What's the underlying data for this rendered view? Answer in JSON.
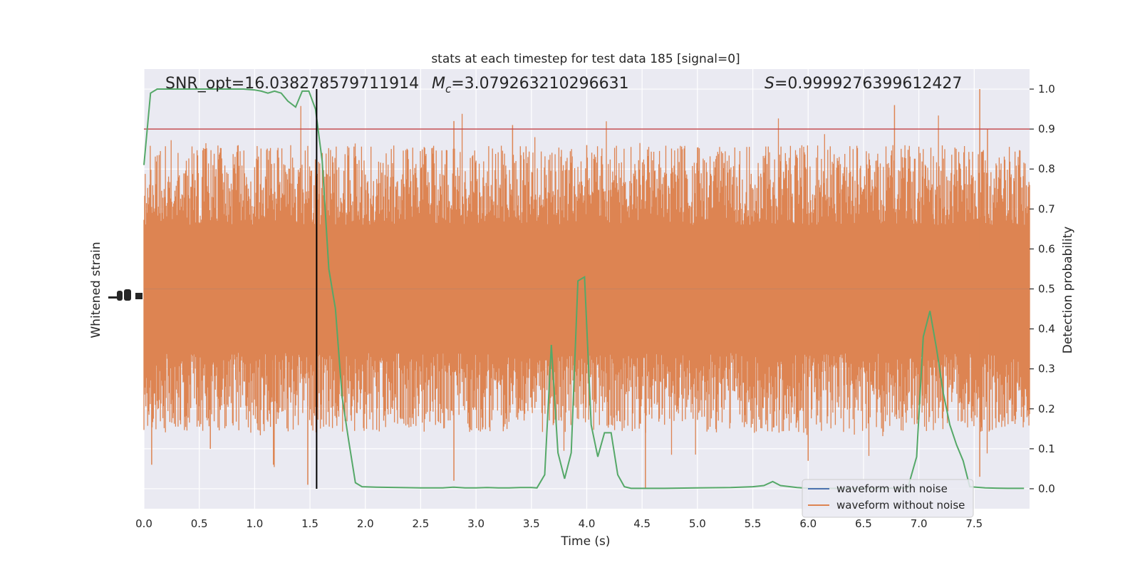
{
  "chart_data": {
    "type": "line",
    "title": "stats at each timestep for test data 185 [signal=0]",
    "xlabel": "Time (s)",
    "ylabel_left": "Whitened strain",
    "ylabel_right": "Detection probability",
    "xlim": [
      0.0,
      8.0
    ],
    "ylim_right": [
      -0.05,
      1.05
    ],
    "x_ticks": [
      0.0,
      0.5,
      1.0,
      1.5,
      2.0,
      2.5,
      3.0,
      3.5,
      4.0,
      4.5,
      5.0,
      5.5,
      6.0,
      6.5,
      7.0,
      7.5
    ],
    "x_tick_labels": [
      "0.0",
      "0.5",
      "1.0",
      "1.5",
      "2.0",
      "2.5",
      "3.0",
      "3.5",
      "4.0",
      "4.5",
      "5.0",
      "5.5",
      "6.0",
      "6.5",
      "7.0",
      "7.5"
    ],
    "y_right_ticks": [
      0.0,
      0.1,
      0.2,
      0.3,
      0.4,
      0.5,
      0.6,
      0.7,
      0.8,
      0.9,
      1.0
    ],
    "y_right_tick_labels": [
      "0.0",
      "0.1",
      "0.2",
      "0.3",
      "0.4",
      "0.5",
      "0.6",
      "0.7",
      "0.8",
      "0.9",
      "1.0"
    ],
    "grid": true,
    "legend_position": "lower-right",
    "annotations": {
      "snr": "SNR_opt=16.038278579711914",
      "mc_symbol": "M",
      "mc_subscript": "c",
      "mc_value": "=3.079263210296631",
      "s_symbol": "S",
      "s_value": "=0.9999276399612427"
    },
    "threshold": 0.9,
    "vline_x": 1.56,
    "series": [
      {
        "name": "waveform with noise",
        "color": "#4c72b0"
      },
      {
        "name": "waveform without noise",
        "color": "#dd8452"
      }
    ],
    "probability_series": {
      "color": "#55a868",
      "x": [
        0.0,
        0.06,
        0.12,
        0.2,
        0.3,
        0.4,
        0.5,
        0.6,
        0.7,
        0.8,
        0.9,
        1.0,
        1.06,
        1.12,
        1.18,
        1.24,
        1.3,
        1.37,
        1.43,
        1.49,
        1.55,
        1.61,
        1.67,
        1.73,
        1.79,
        1.85,
        1.91,
        1.97,
        2.1,
        2.3,
        2.5,
        2.7,
        2.8,
        2.9,
        3.0,
        3.1,
        3.2,
        3.3,
        3.4,
        3.5,
        3.55,
        3.62,
        3.68,
        3.74,
        3.8,
        3.86,
        3.92,
        3.98,
        4.04,
        4.1,
        4.16,
        4.22,
        4.28,
        4.34,
        4.4,
        4.5,
        4.7,
        5.0,
        5.3,
        5.5,
        5.6,
        5.68,
        5.75,
        5.9,
        6.0,
        6.3,
        6.6,
        6.9,
        6.98,
        7.04,
        7.1,
        7.16,
        7.22,
        7.28,
        7.34,
        7.4,
        7.46,
        7.6,
        7.8,
        7.95
      ],
      "y": [
        0.81,
        0.99,
        1.0,
        1.0,
        1.0,
        1.0,
        1.0,
        1.0,
        1.0,
        1.0,
        1.0,
        0.998,
        0.995,
        0.99,
        0.995,
        0.99,
        0.97,
        0.955,
        0.995,
        0.995,
        0.95,
        0.82,
        0.55,
        0.45,
        0.23,
        0.12,
        0.015,
        0.005,
        0.004,
        0.003,
        0.002,
        0.002,
        0.004,
        0.002,
        0.002,
        0.003,
        0.002,
        0.002,
        0.003,
        0.003,
        0.002,
        0.035,
        0.36,
        0.09,
        0.025,
        0.09,
        0.52,
        0.53,
        0.16,
        0.08,
        0.14,
        0.14,
        0.035,
        0.005,
        0.001,
        0.001,
        0.001,
        0.002,
        0.003,
        0.005,
        0.008,
        0.018,
        0.008,
        0.003,
        0.001,
        0.001,
        0.001,
        0.002,
        0.08,
        0.38,
        0.445,
        0.35,
        0.24,
        0.16,
        0.11,
        0.07,
        0.005,
        0.002,
        0.001,
        0.001
      ]
    }
  }
}
